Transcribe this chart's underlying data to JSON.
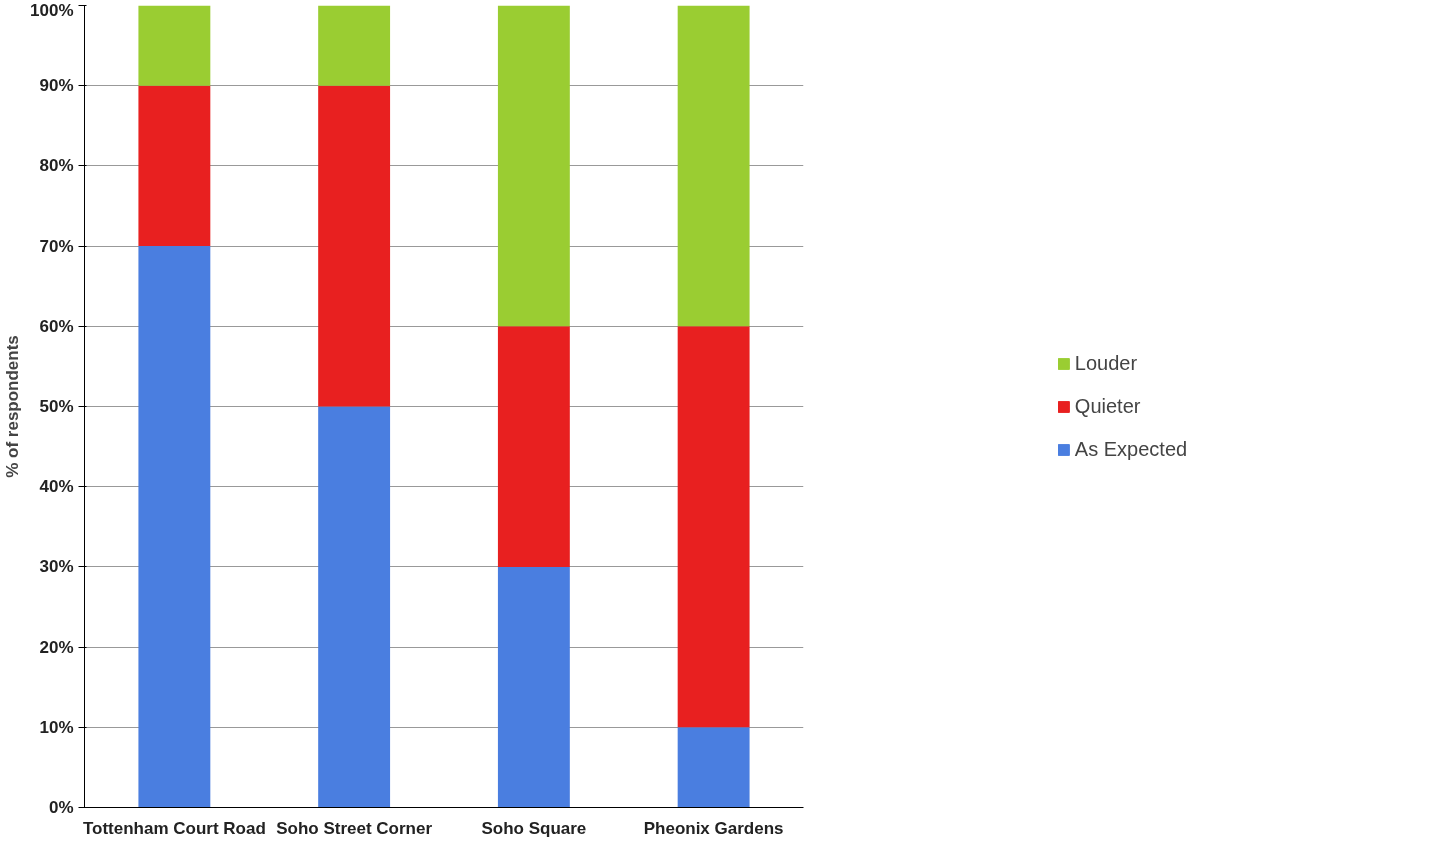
{
  "chart_data": {
    "type": "bar",
    "stacked": true,
    "ylabel": "% of respondents",
    "categories": [
      "Tottenham Court Road",
      "Soho Street Corner",
      "Soho Square",
      "Pheonix Gardens"
    ],
    "series": [
      {
        "name": "As Expected",
        "color": "#4a7ee0",
        "values": [
          70,
          50,
          30,
          10
        ]
      },
      {
        "name": "Quieter",
        "color": "#e82020",
        "values": [
          20,
          40,
          30,
          50
        ]
      },
      {
        "name": "Louder",
        "color": "#9acd32",
        "values": [
          10,
          10,
          40,
          40
        ]
      }
    ],
    "ylim": [
      0,
      100
    ],
    "yticks": [
      {
        "value": 0,
        "label": "0%"
      },
      {
        "value": 10,
        "label": "10%"
      },
      {
        "value": 20,
        "label": "20%"
      },
      {
        "value": 30,
        "label": "30%"
      },
      {
        "value": 40,
        "label": "40%"
      },
      {
        "value": 50,
        "label": "50%"
      },
      {
        "value": 60,
        "label": "60%"
      },
      {
        "value": 70,
        "label": "70%"
      },
      {
        "value": 80,
        "label": "80%"
      },
      {
        "value": 90,
        "label": "90%"
      },
      {
        "value": 100,
        "label": "100%"
      }
    ],
    "grid": "y",
    "legend": "right"
  }
}
